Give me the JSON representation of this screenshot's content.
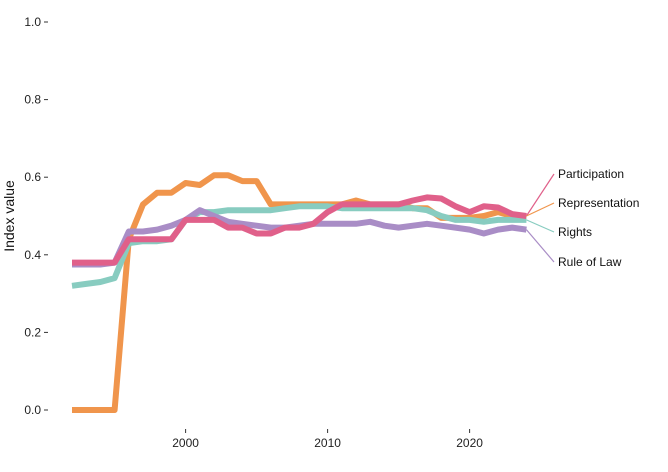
{
  "chart_data": {
    "type": "line",
    "title": "",
    "xlabel": "",
    "ylabel": "Index value",
    "xlim": [
      1992,
      2032
    ],
    "ylim": [
      0,
      1
    ],
    "x_ticks": [
      2000,
      2010,
      2020
    ],
    "y_ticks": [
      0.0,
      0.2,
      0.4,
      0.6,
      0.8,
      1.0
    ],
    "y_tick_labels": [
      "0.0",
      "0.2",
      "0.4",
      "0.6",
      "0.8",
      "1.0"
    ],
    "grid": false,
    "legend": "direct labels at right end of lines",
    "x": [
      1992,
      1993,
      1994,
      1995,
      1996,
      1997,
      1998,
      1999,
      2000,
      2001,
      2002,
      2003,
      2004,
      2005,
      2006,
      2007,
      2008,
      2009,
      2010,
      2011,
      2012,
      2013,
      2014,
      2015,
      2016,
      2017,
      2018,
      2019,
      2020,
      2021,
      2022,
      2023,
      2024
    ],
    "series": [
      {
        "name": "Participation",
        "color": "#E0608A",
        "values": [
          0.38,
          0.38,
          0.38,
          0.38,
          0.44,
          0.44,
          0.44,
          0.44,
          0.49,
          0.49,
          0.49,
          0.47,
          0.47,
          0.455,
          0.455,
          0.47,
          0.47,
          0.48,
          0.51,
          0.53,
          0.53,
          0.53,
          0.53,
          0.53,
          0.54,
          0.548,
          0.545,
          0.525,
          0.51,
          0.525,
          0.522,
          0.505,
          0.5
        ]
      },
      {
        "name": "Representation",
        "color": "#F0954C",
        "values": [
          0.0,
          0.0,
          0.0,
          0.0,
          0.44,
          0.53,
          0.56,
          0.56,
          0.585,
          0.58,
          0.605,
          0.605,
          0.59,
          0.59,
          0.53,
          0.53,
          0.53,
          0.53,
          0.53,
          0.53,
          0.54,
          0.53,
          0.53,
          0.53,
          0.52,
          0.52,
          0.495,
          0.495,
          0.495,
          0.5,
          0.51,
          0.5,
          0.5
        ]
      },
      {
        "name": "Rights",
        "color": "#88CCC0",
        "values": [
          0.32,
          0.325,
          0.33,
          0.34,
          0.43,
          0.435,
          0.435,
          0.44,
          0.49,
          0.51,
          0.51,
          0.515,
          0.515,
          0.515,
          0.515,
          0.52,
          0.525,
          0.525,
          0.525,
          0.52,
          0.52,
          0.52,
          0.52,
          0.52,
          0.52,
          0.515,
          0.5,
          0.49,
          0.49,
          0.485,
          0.49,
          0.49,
          0.49
        ]
      },
      {
        "name": "Rule of Law",
        "color": "#A98DC6",
        "values": [
          0.375,
          0.375,
          0.375,
          0.38,
          0.46,
          0.46,
          0.465,
          0.475,
          0.49,
          0.515,
          0.5,
          0.485,
          0.48,
          0.475,
          0.47,
          0.47,
          0.475,
          0.48,
          0.48,
          0.48,
          0.48,
          0.485,
          0.475,
          0.47,
          0.475,
          0.48,
          0.475,
          0.47,
          0.465,
          0.455,
          0.465,
          0.47,
          0.465
        ]
      }
    ]
  }
}
